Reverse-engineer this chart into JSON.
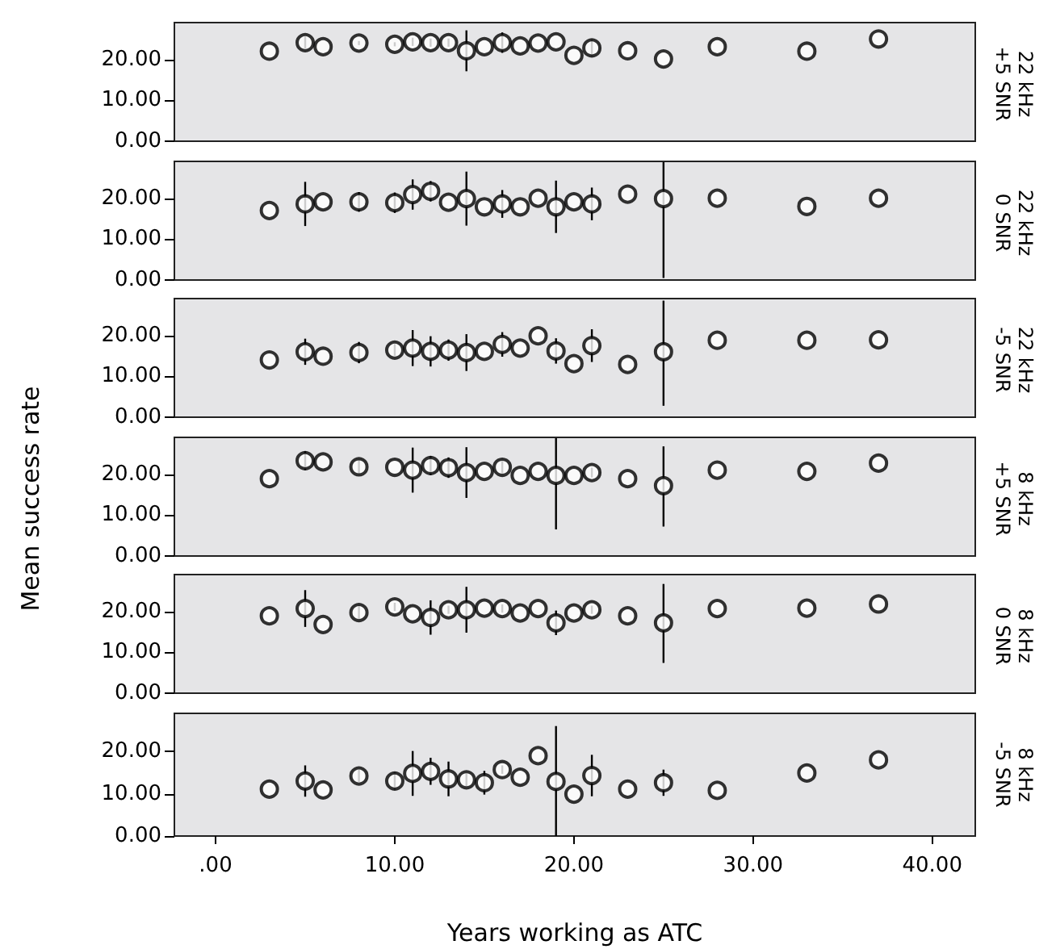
{
  "chart_data": [
    {
      "type": "scatter",
      "y2label": "22 kHz\n+5 SNR",
      "xlim": [
        -2.3,
        42.4
      ],
      "ylim": [
        0,
        29
      ],
      "yticks": [
        {
          "value": 0,
          "label": "0.00"
        },
        {
          "value": 10,
          "label": "10.00"
        },
        {
          "value": 20,
          "label": "20.00"
        }
      ],
      "tick_labels": "y",
      "marker": "circle",
      "grid": false,
      "x": [
        3,
        5,
        6,
        8,
        10,
        11,
        12,
        13,
        14,
        15,
        16,
        17,
        18,
        19,
        20,
        21,
        23,
        25,
        28,
        33,
        37
      ],
      "series": [
        {
          "color": "#000000",
          "values": [
            22.0,
            24.1,
            23.1,
            24.0,
            23.7,
            24.3,
            24.1,
            24.1,
            22.1,
            23.1,
            24.1,
            23.3,
            24.0,
            24.3,
            21.0,
            22.8,
            22.1,
            20.1,
            23.1,
            22.0,
            25.0
          ],
          "errors": [
            null,
            1.5,
            null,
            0.5,
            0.5,
            1,
            1,
            1,
            5,
            null,
            2.5,
            null,
            null,
            null,
            null,
            2,
            null,
            null,
            null,
            null,
            null
          ]
        }
      ]
    },
    {
      "type": "scatter",
      "y2label": "22 kHz\n0 SNR",
      "xlim": [
        -2.3,
        42.4
      ],
      "ylim": [
        0,
        29
      ],
      "yticks": [
        {
          "value": 0,
          "label": "0.00"
        },
        {
          "value": 10,
          "label": "10.00"
        },
        {
          "value": 20,
          "label": "20.00"
        }
      ],
      "tick_labels": "y",
      "marker": "circle",
      "grid": false,
      "x": [
        3,
        5,
        6,
        8,
        10,
        11,
        12,
        13,
        14,
        15,
        16,
        17,
        18,
        19,
        20,
        21,
        23,
        25,
        28,
        33,
        37
      ],
      "series": [
        {
          "color": "#000000",
          "values": [
            17.0,
            18.6,
            19.1,
            19.1,
            18.9,
            20.9,
            21.7,
            19.0,
            19.9,
            17.9,
            18.6,
            17.9,
            20.0,
            17.9,
            19.1,
            18.6,
            21.0,
            19.9,
            20.0,
            18.0,
            20.0
          ],
          "errors": [
            null,
            5.4,
            null,
            2.4,
            2.5,
            3.7,
            2.5,
            null,
            6.6,
            null,
            3.4,
            null,
            null,
            6.4,
            null,
            4,
            null,
            [
              0.5,
              28.8
            ],
            null,
            null,
            null
          ]
        }
      ]
    },
    {
      "type": "scatter",
      "y2label": "22 kHz\n-5 SNR",
      "xlim": [
        -2.3,
        42.4
      ],
      "ylim": [
        0,
        29
      ],
      "yticks": [
        {
          "value": 0,
          "label": "0.00"
        },
        {
          "value": 10,
          "label": "10.00"
        },
        {
          "value": 20,
          "label": "20.00"
        }
      ],
      "tick_labels": "y",
      "marker": "circle",
      "grid": false,
      "x": [
        3,
        5,
        6,
        8,
        10,
        11,
        12,
        13,
        14,
        15,
        16,
        17,
        18,
        19,
        20,
        21,
        23,
        25,
        28,
        33,
        37
      ],
      "series": [
        {
          "color": "#000000",
          "values": [
            14.0,
            16.0,
            14.9,
            15.8,
            16.4,
            16.9,
            16.1,
            16.4,
            15.8,
            16.1,
            17.8,
            16.9,
            19.9,
            16.2,
            13.1,
            17.5,
            12.9,
            16.0,
            18.8,
            18.8,
            18.9
          ],
          "errors": [
            null,
            3.2,
            null,
            2.6,
            1.5,
            4.4,
            3.7,
            2.6,
            4.5,
            null,
            3,
            null,
            null,
            3.1,
            null,
            4,
            null,
            [
              2.8,
              28.5
            ],
            null,
            null,
            null
          ]
        }
      ]
    },
    {
      "type": "scatter",
      "ylabel": "Mean success rate",
      "y2label": "8 kHz\n+5 SNR",
      "xlim": [
        -2.3,
        42.4
      ],
      "ylim": [
        0,
        29
      ],
      "yticks": [
        {
          "value": 0,
          "label": "0.00"
        },
        {
          "value": 10,
          "label": "10.00"
        },
        {
          "value": 20,
          "label": "20.00"
        }
      ],
      "tick_labels": "y",
      "marker": "circle",
      "grid": false,
      "x": [
        3,
        5,
        6,
        8,
        10,
        11,
        12,
        13,
        14,
        15,
        16,
        17,
        18,
        19,
        20,
        21,
        23,
        25,
        28,
        33,
        37
      ],
      "series": [
        {
          "color": "#000000",
          "values": [
            18.9,
            23.3,
            23.0,
            21.8,
            21.7,
            21.0,
            22.1,
            21.6,
            20.4,
            20.7,
            21.7,
            19.7,
            20.7,
            19.7,
            19.7,
            20.4,
            18.9,
            17.2,
            21.0,
            20.7,
            22.7
          ],
          "errors": [
            null,
            2.3,
            null,
            1.8,
            null,
            5.5,
            2.3,
            2.5,
            6.2,
            null,
            1.5,
            null,
            null,
            [
              6.5,
              28.8
            ],
            null,
            1.2,
            null,
            [
              7.2,
              26.8
            ],
            null,
            null,
            null
          ]
        }
      ]
    },
    {
      "type": "scatter",
      "y2label": "8 kHz\n0 SNR",
      "xlim": [
        -2.3,
        42.4
      ],
      "ylim": [
        0,
        29
      ],
      "yticks": [
        {
          "value": 0,
          "label": "0.00"
        },
        {
          "value": 10,
          "label": "10.00"
        },
        {
          "value": 20,
          "label": "20.00"
        }
      ],
      "tick_labels": "y",
      "marker": "circle",
      "grid": false,
      "x": [
        3,
        5,
        6,
        8,
        10,
        11,
        12,
        13,
        14,
        15,
        16,
        17,
        18,
        19,
        20,
        21,
        23,
        25,
        28,
        33,
        37
      ],
      "series": [
        {
          "color": "#000000",
          "values": [
            18.9,
            20.7,
            16.8,
            19.7,
            21.1,
            19.4,
            18.5,
            20.4,
            20.4,
            20.8,
            20.7,
            19.6,
            20.7,
            17.2,
            19.6,
            20.4,
            18.9,
            17.2,
            20.7,
            20.8,
            21.8
          ],
          "errors": [
            null,
            4.5,
            null,
            1.8,
            1,
            null,
            4.2,
            1,
            5.6,
            null,
            1,
            null,
            null,
            3,
            null,
            1,
            null,
            [
              7.4,
              26.7
            ],
            null,
            null,
            null
          ]
        }
      ]
    },
    {
      "type": "scatter",
      "y2label": "8 kHz\n-5 SNR",
      "xlabel": "Years working as ATC",
      "xlim": [
        -2.3,
        42.4
      ],
      "xticks": [
        {
          "value": 0,
          "label": ".00"
        },
        {
          "value": 10,
          "label": "10.00"
        },
        {
          "value": 20,
          "label": "20.00"
        },
        {
          "value": 30,
          "label": "30.00"
        },
        {
          "value": 40,
          "label": "40.00"
        }
      ],
      "ylim": [
        0,
        29
      ],
      "yticks": [
        {
          "value": 0,
          "label": "0.00"
        },
        {
          "value": 10,
          "label": "10.00"
        },
        {
          "value": 20,
          "label": "20.00"
        }
      ],
      "marker": "circle",
      "grid": false,
      "x": [
        3,
        5,
        6,
        8,
        10,
        11,
        12,
        13,
        14,
        15,
        16,
        17,
        18,
        19,
        20,
        21,
        23,
        25,
        28,
        33,
        37
      ],
      "series": [
        {
          "color": "#000000",
          "values": [
            11.1,
            13.0,
            10.9,
            14.2,
            13.0,
            14.8,
            15.3,
            13.5,
            13.3,
            12.6,
            15.7,
            13.9,
            19.0,
            12.9,
            9.9,
            14.3,
            11.1,
            12.6,
            10.8,
            14.9,
            18.0
          ],
          "errors": [
            null,
            3.7,
            null,
            1.5,
            2,
            5.3,
            3.2,
            4.1,
            1.5,
            2.8,
            1,
            null,
            null,
            [
              0,
              26
            ],
            null,
            4.9,
            null,
            3.1,
            null,
            null,
            null
          ]
        }
      ]
    }
  ]
}
